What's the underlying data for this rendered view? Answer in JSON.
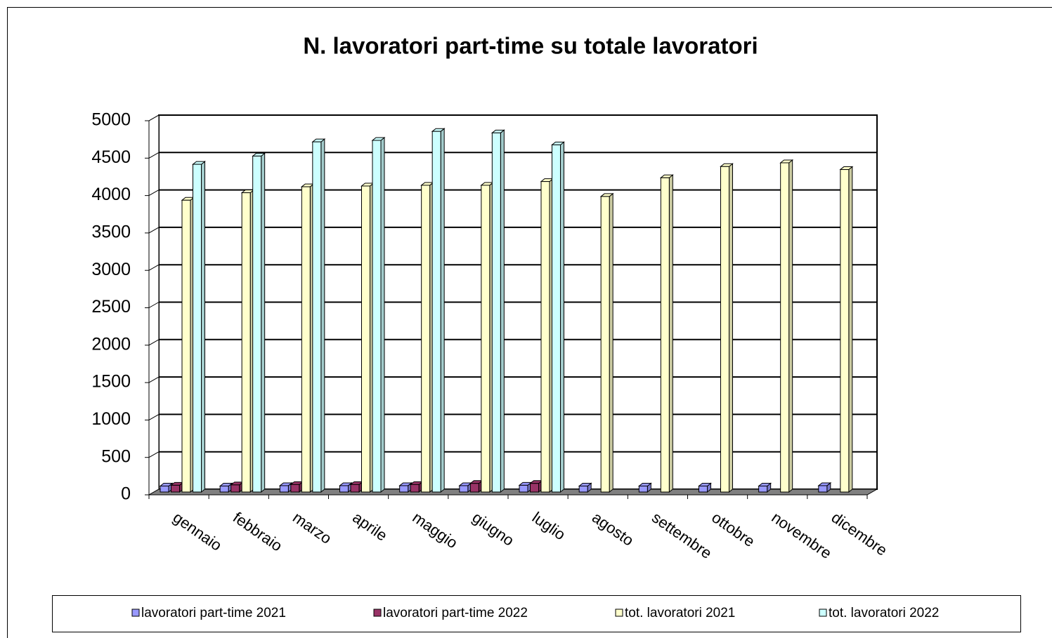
{
  "chart_data": {
    "type": "bar3d",
    "title": "N. lavoratori part-time su totale lavoratori",
    "categories": [
      "gennaio",
      "febbraio",
      "marzo",
      "aprile",
      "maggio",
      "giugno",
      "luglio",
      "agosto",
      "settembre",
      "ottobre",
      "novembre",
      "dicembre"
    ],
    "series": [
      {
        "name": "lavoratori part-time 2021",
        "color": "#9999ff",
        "values": [
          80,
          80,
          85,
          85,
          85,
          85,
          90,
          80,
          80,
          80,
          80,
          85
        ]
      },
      {
        "name": "lavoratori part-time 2022",
        "color": "#993366",
        "values": [
          90,
          95,
          100,
          100,
          100,
          115,
          115,
          null,
          null,
          null,
          null,
          null
        ]
      },
      {
        "name": "tot. lavoratori 2021",
        "color": "#ffffcc",
        "values": [
          3900,
          4000,
          4080,
          4090,
          4100,
          4100,
          4150,
          3950,
          4200,
          4350,
          4400,
          4310
        ]
      },
      {
        "name": "tot. lavoratori 2022",
        "color": "#ccffff",
        "values": [
          4380,
          4490,
          4680,
          4700,
          4820,
          4800,
          4640,
          null,
          null,
          null,
          null,
          null
        ]
      }
    ],
    "ylim": [
      0,
      5000
    ],
    "yticks": [
      0,
      500,
      1000,
      1500,
      2000,
      2500,
      3000,
      3500,
      4000,
      4500,
      5000
    ],
    "grid": true,
    "legend": "bottom"
  }
}
